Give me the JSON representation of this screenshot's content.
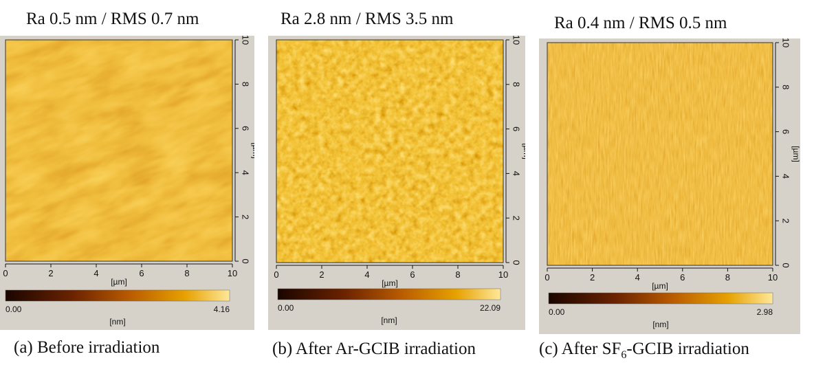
{
  "panels": [
    {
      "title": "Ra 0.5 nm / RMS 0.7 nm",
      "caption": "(a) Before irradiation",
      "x_ticks": [
        "0",
        "2",
        "4",
        "6",
        "8",
        "10"
      ],
      "y_ticks": [
        "0",
        "2",
        "4",
        "6",
        "8",
        "10"
      ],
      "x_unit": "[µm]",
      "y_unit": "[µm]",
      "scale_min": "0.00",
      "scale_max": "4.16",
      "scale_unit": "[nm]",
      "texture": "diagonal-wavy-terraces"
    },
    {
      "title": "Ra 2.8 nm / RMS 3.5 nm",
      "caption": "(b) After Ar-GCIB irradiation",
      "x_ticks": [
        "0",
        "2",
        "4",
        "6",
        "8",
        "10"
      ],
      "y_ticks": [
        "0",
        "2",
        "4",
        "6",
        "8",
        "10"
      ],
      "x_unit": "[µm]",
      "y_unit": "[µm]",
      "scale_min": "0.00",
      "scale_max": "22.09",
      "scale_unit": "[nm]",
      "texture": "rough-granular"
    },
    {
      "title": "Ra 0.4 nm / RMS 0.5 nm",
      "caption_main": "(c) After SF",
      "caption_sub": "6",
      "caption_rest": "-GCIB irradiation",
      "x_ticks": [
        "0",
        "2",
        "4",
        "6",
        "8",
        "10"
      ],
      "y_ticks": [
        "0",
        "2",
        "4",
        "6",
        "8",
        "10"
      ],
      "x_unit": "[µm]",
      "y_unit": "[µm]",
      "scale_min": "0.00",
      "scale_max": "2.98",
      "scale_unit": "[nm]",
      "texture": "smooth-fine-streaks"
    }
  ],
  "colors": {
    "colormap": [
      "#1a0500",
      "#6b2300",
      "#b85a00",
      "#e6a100",
      "#ffe89a"
    ],
    "panel_bg": "#d6d2ca"
  }
}
